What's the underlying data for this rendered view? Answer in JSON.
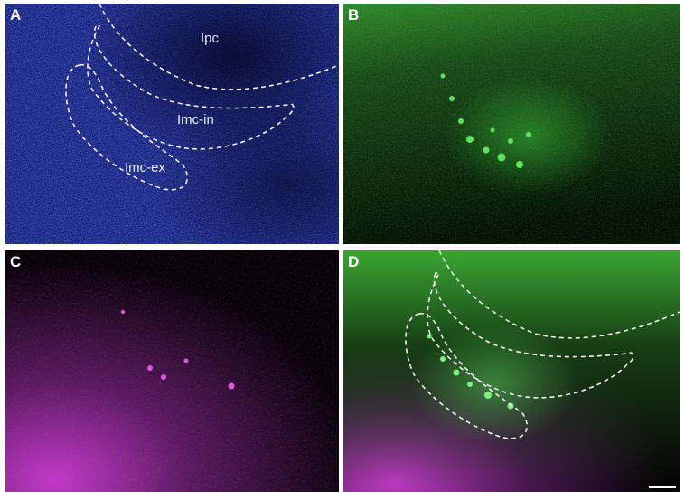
{
  "panels": [
    {
      "letter": "A",
      "channel": "blue",
      "color": "#2b3fae"
    },
    {
      "letter": "B",
      "channel": "green",
      "color": "#2fbf3a"
    },
    {
      "letter": "C",
      "channel": "magenta",
      "color": "#b62bb8"
    },
    {
      "letter": "D",
      "channel": "merge",
      "color": "#6fd15a"
    }
  ],
  "regions": {
    "ipc": "Ipc",
    "imc_in": "Imc-in",
    "imc_ex": "Imc-ex"
  }
}
